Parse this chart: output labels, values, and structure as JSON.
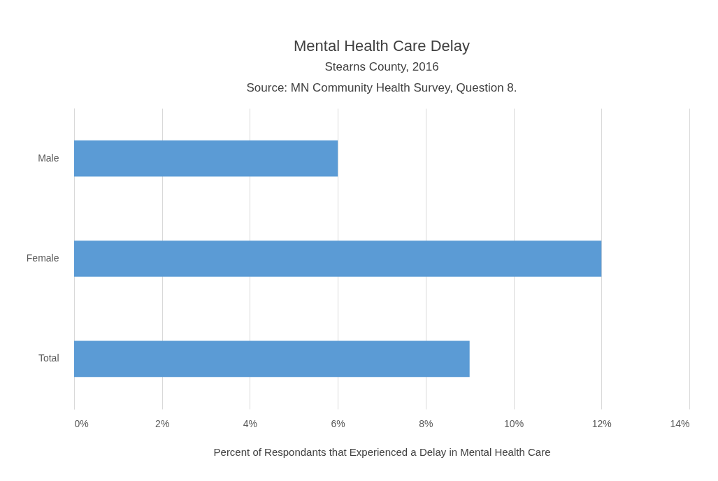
{
  "chart_data": {
    "type": "bar",
    "orientation": "horizontal",
    "title": "Mental Health Care Delay",
    "subtitle": "Stearns County, 2016",
    "annotations": [
      "Source: MN Community Health Survey, Question 8."
    ],
    "xlabel": "Percent of Respondants that Experienced a Delay in Mental Health Care",
    "categories": [
      "Male",
      "Female",
      "Total"
    ],
    "values": [
      6,
      12,
      9
    ],
    "color": "#5b9bd5",
    "xlim": [
      0,
      14
    ],
    "xticks": [
      {
        "value": 0,
        "label": "0%"
      },
      {
        "value": 2,
        "label": "2%"
      },
      {
        "value": 4,
        "label": "4%"
      },
      {
        "value": 6,
        "label": "6%"
      },
      {
        "value": 8,
        "label": "8%"
      },
      {
        "value": 10,
        "label": "10%"
      },
      {
        "value": 12,
        "label": "12%"
      },
      {
        "value": 14,
        "label": "14%"
      }
    ],
    "grid": "x"
  }
}
